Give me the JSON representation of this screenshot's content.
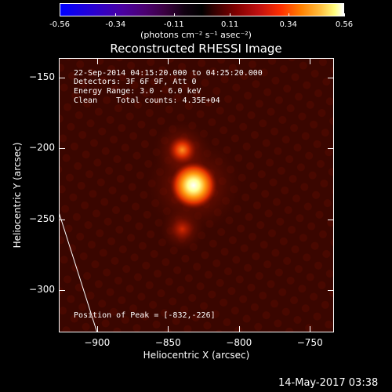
{
  "colorbar": {
    "tick_labels": [
      "-0.56",
      "-0.34",
      "-0.11",
      "0.11",
      "0.34",
      "0.56"
    ],
    "units": "(photons cm⁻² s⁻¹ asec⁻²)",
    "range": [
      -0.56,
      0.56
    ]
  },
  "chart_data": {
    "type": "heatmap",
    "title": "Reconstructed RHESSI Image",
    "xlabel": "Heliocentric X (arcsec)",
    "ylabel": "Heliocentric Y (arcsec)",
    "xlim": [
      -927,
      -733
    ],
    "ylim": [
      -330,
      -136
    ],
    "x_ticks": [
      -900,
      -850,
      -800,
      -750
    ],
    "y_ticks": [
      -150,
      -200,
      -250,
      -300
    ],
    "x_tick_labels": [
      "−900",
      "−850",
      "−800",
      "−750"
    ],
    "y_tick_labels": [
      "−150",
      "−200",
      "−250",
      "−300"
    ],
    "sources": [
      {
        "x": -832,
        "y": -226,
        "intensity": 0.56
      },
      {
        "x": -840,
        "y": -201,
        "intensity": 0.3
      },
      {
        "x": -840,
        "y": -257,
        "intensity": 0.18
      }
    ],
    "limb_line": [
      [
        -927,
        -245
      ],
      [
        -900,
        -330
      ]
    ],
    "annotations": {
      "time": "22-Sep-2014 04:15:20.000 to 04:25:20.000",
      "detectors": "Detectors: 3F 6F 9F, Att 0",
      "energy": "Energy Range: 3.0 - 6.0 keV",
      "method": "Clean    Total counts: 4.35E+04",
      "peak": "Position of Peak = [-832,-226]"
    }
  },
  "footer": {
    "date": "14-May-2017 03:38"
  }
}
